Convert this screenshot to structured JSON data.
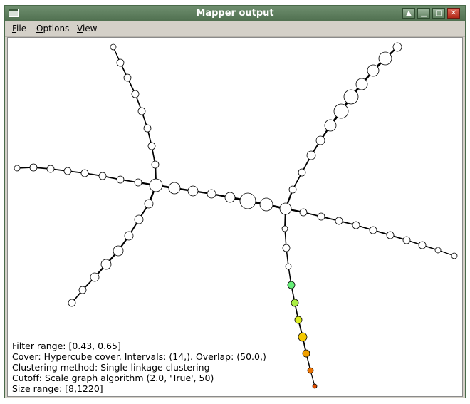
{
  "window": {
    "title": "Mapper output",
    "buttons": [
      "up-arrow-icon",
      "minimize-icon",
      "maximize-icon",
      "close-icon"
    ]
  },
  "menubar": {
    "items": [
      {
        "label": "File",
        "mnemonic": "F",
        "rest": "ile"
      },
      {
        "label": "Options",
        "mnemonic": "O",
        "rest": "ptions"
      },
      {
        "label": "View",
        "mnemonic": "V",
        "rest": "iew"
      }
    ]
  },
  "info": {
    "filter_range": "Filter range: [0.43, 0.65]",
    "cover": "Cover: Hypercube cover. Intervals: (14,). Overlap: (50.0,)",
    "clustering": "Clustering method: Single linkage clustering",
    "cutoff": "Cutoff: Scale graph algorithm (2.0, 'True', 50)",
    "size_range": "Size range: [8,1220]"
  },
  "colors": {
    "node_default": "#ffffff",
    "node_stroke": "#000000",
    "green": "#66ee77",
    "yellow_green": "#aaee44",
    "yellow": "#ddee22",
    "gold": "#f4c800",
    "orange": "#f0a000",
    "dark_orange": "#e87000",
    "red_orange": "#e04c00"
  }
}
